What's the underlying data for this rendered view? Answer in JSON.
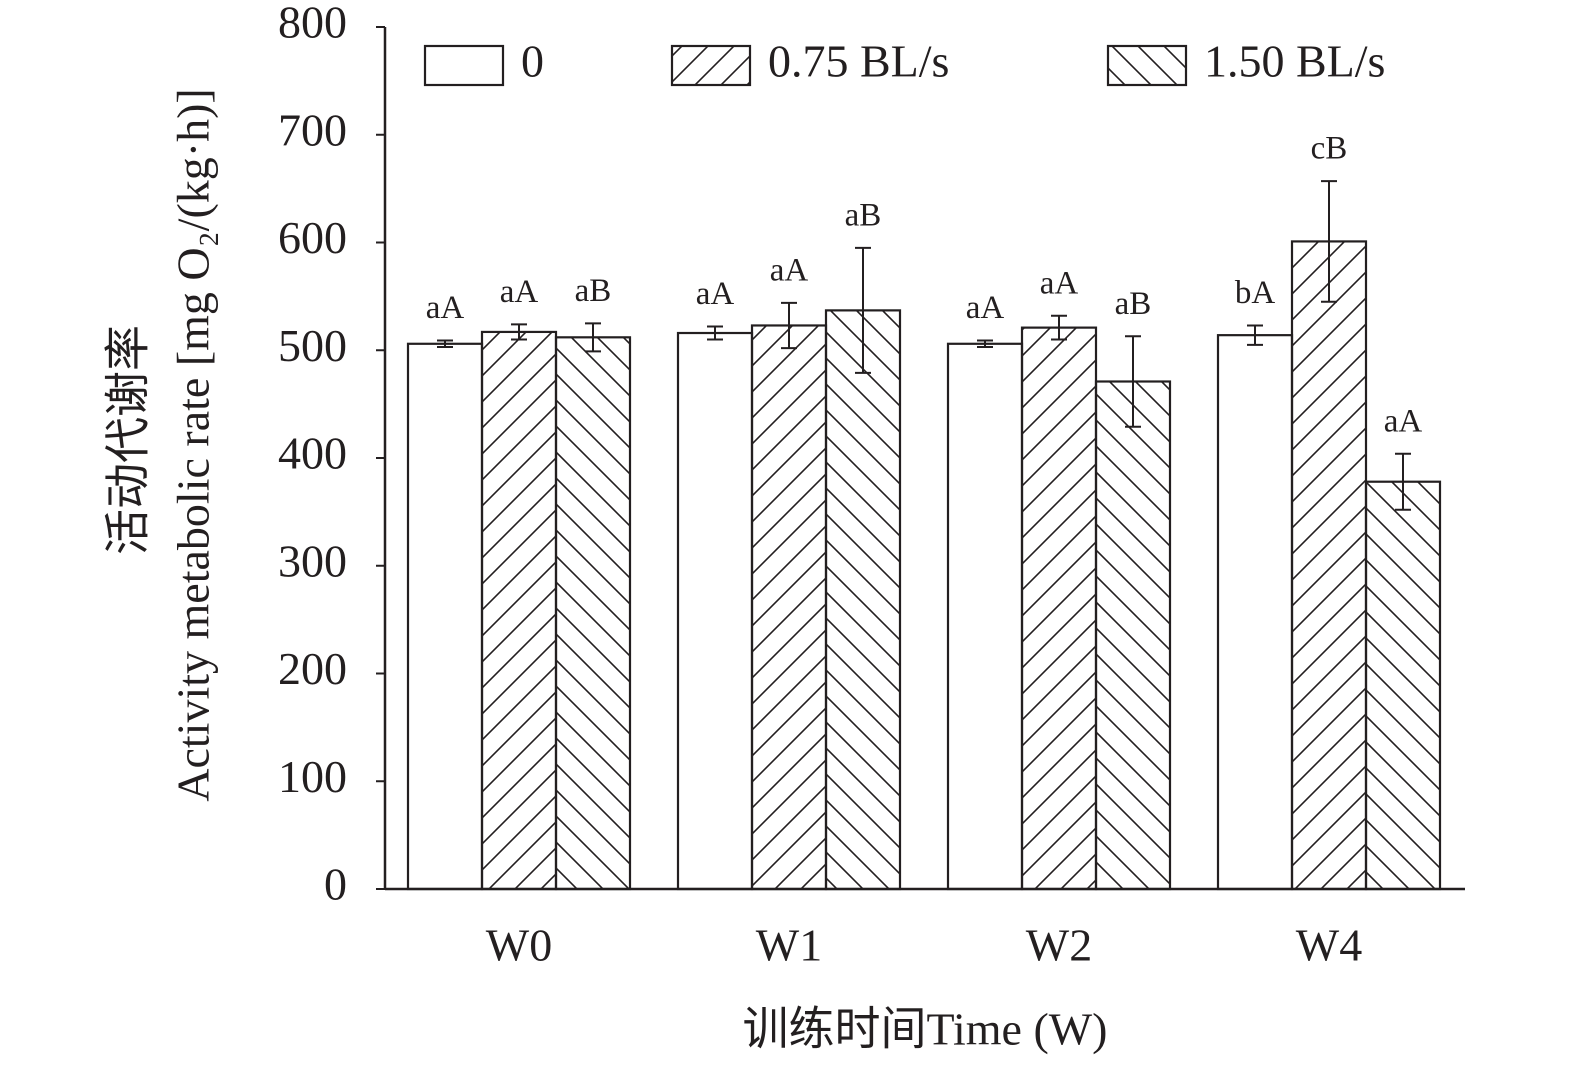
{
  "chart_data": {
    "type": "bar",
    "y_label": [
      "活动代谢率",
      "Activity metabolic rate [mg O₂/(kg·h)]"
    ],
    "x_label": "训练时间Time (W)",
    "categories": [
      "W0",
      "W1",
      "W2",
      "W4"
    ],
    "series": [
      {
        "name": "0",
        "color": "#ffffff",
        "hatch": "none",
        "values": [
          506,
          516,
          506,
          514
        ],
        "errors": [
          3,
          6,
          3,
          9
        ],
        "labels": [
          "aA",
          "aA",
          "aA",
          "bA"
        ]
      },
      {
        "name": "0.75 BL/s",
        "color": "#ffffff",
        "hatch": "/",
        "values": [
          517,
          523,
          521,
          601
        ],
        "errors": [
          7,
          21,
          11,
          56
        ],
        "labels": [
          "aA",
          "aA",
          "aA",
          "cB"
        ]
      },
      {
        "name": "1.50 BL/s",
        "color": "#ffffff",
        "hatch": "\\",
        "values": [
          512,
          537,
          471,
          378
        ],
        "errors": [
          13,
          58,
          42,
          26
        ],
        "labels": [
          "aB",
          "aB",
          "aB",
          "aA"
        ]
      }
    ],
    "ylim": [
      0,
      800
    ],
    "yticks": [
      0,
      100,
      200,
      300,
      400,
      500,
      600,
      700,
      800
    ],
    "legend": "top"
  }
}
